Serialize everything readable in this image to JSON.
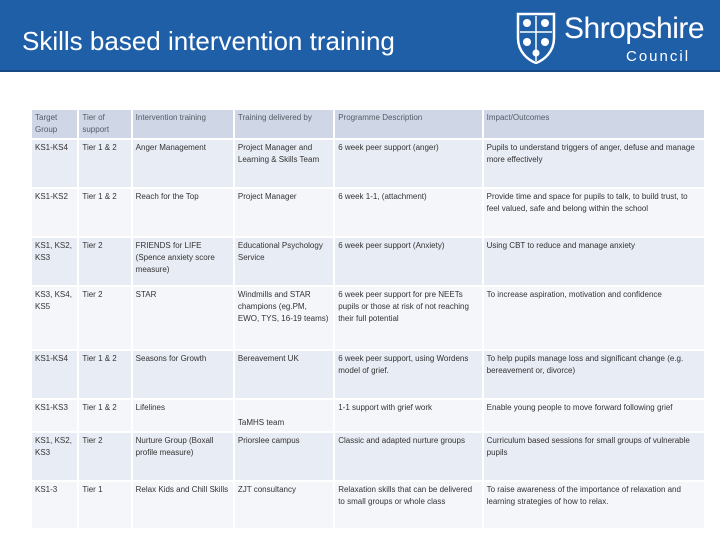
{
  "slide": {
    "title": "Skills based intervention training",
    "logo": {
      "name": "Shropshire",
      "subtitle": "Council"
    }
  },
  "colors": {
    "header": "#1f5fa8",
    "header_row": "#cfd7e6",
    "row_a": "#e8ecf4",
    "row_b": "#f4f6fa"
  },
  "table": {
    "headers": [
      "Target Group",
      "Tier of support",
      "Intervention training",
      "Training delivered by",
      "Programme Description",
      "Impact/Outcomes"
    ],
    "rows": [
      [
        "KS1-KS4",
        "Tier 1 & 2",
        "Anger Management",
        "Project Manager and Learning & Skills Team",
        "6 week peer support (anger)",
        "Pupils to understand triggers of anger, defuse and manage more effectively"
      ],
      [
        "KS1-KS2",
        "Tier 1 & 2",
        "Reach for the Top",
        "Project Manager",
        "6 week 1-1, (attachment)",
        "Provide time and space for pupils to talk, to build trust, to feel valued, safe and belong within the school"
      ],
      [
        "KS1, KS2, KS3",
        "Tier 2",
        "FRIENDS for LIFE (Spence anxiety score measure)",
        "Educational Psychology Service",
        "6 week peer support (Anxiety)",
        "Using CBT to reduce and manage anxiety"
      ],
      [
        "KS3, KS4, KS5",
        "Tier 2",
        "STAR",
        "Windmills and STAR champions (eg.PM, EWO, TYS, 16-19 teams)",
        "6 week peer support for pre NEETs pupils or those at risk of not reaching their full potential",
        "To increase aspiration, motivation and confidence"
      ],
      [
        "KS1-KS4",
        "Tier 1 & 2",
        "Seasons for Growth",
        "Bereavement UK",
        "6 week peer support, using Wordens model of grief.",
        "To help pupils manage loss and significant change (e.g. bereavement or, divorce)"
      ],
      [
        "KS1-KS3",
        "Tier 1 & 2",
        "Lifelines",
        "TaMHS team",
        "1-1 support with grief work",
        "Enable young people to move forward following grief"
      ],
      [
        "KS1, KS2, KS3",
        "Tier 2",
        "Nurture Group (Boxall profile measure)",
        "Priorslee campus",
        "Classic and adapted nurture groups",
        "Curriculum based sessions for small groups of vulnerable pupils"
      ],
      [
        "KS1-3",
        "Tier 1",
        "Relax Kids and Chill Skills",
        "ZJT consultancy",
        "Relaxation skills that can be delivered to small groups or whole class",
        "To raise awareness of the importance of relaxation and learning strategies of how to relax."
      ]
    ]
  }
}
